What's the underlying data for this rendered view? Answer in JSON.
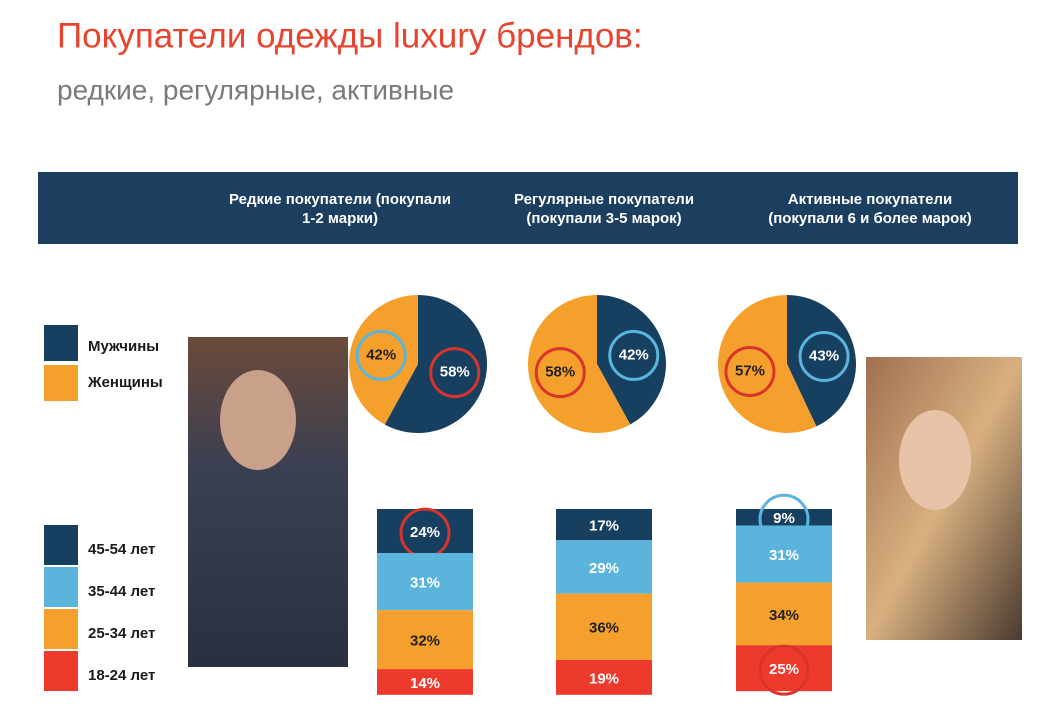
{
  "title": "Покупатели одежды luxury брендов:",
  "subtitle": "редкие, регулярные, активные",
  "columns": [
    [
      "Редкие покупатели (покупали",
      "1-2 марки)"
    ],
    [
      "Регулярные покупатели",
      "(покупали 3-5 марок)"
    ],
    [
      "Активные покупатели",
      "(покупали 6 и более марок)"
    ]
  ],
  "chart_data": [
    {
      "type": "pie",
      "categories": [
        "Мужчины",
        "Женщины"
      ],
      "values": [
        58,
        42
      ],
      "value_labels": [
        "58%",
        "42%"
      ],
      "colors": [
        "#173f5f",
        "#f5a02d"
      ],
      "rings": [
        "#d9342b",
        "#5ab4dc"
      ]
    },
    {
      "type": "pie",
      "categories": [
        "Мужчины",
        "Женщины"
      ],
      "values": [
        42,
        58
      ],
      "value_labels": [
        "42%",
        "58%"
      ],
      "colors": [
        "#173f5f",
        "#f5a02d"
      ],
      "rings": [
        "#5ab4dc",
        "#d9342b"
      ]
    },
    {
      "type": "pie",
      "categories": [
        "Мужчины",
        "Женщины"
      ],
      "values": [
        43,
        57
      ],
      "value_labels": [
        "43%",
        "57%"
      ],
      "colors": [
        "#173f5f",
        "#f5a02d"
      ],
      "rings": [
        "#5ab4dc",
        "#d9342b"
      ]
    },
    {
      "type": "stacked-bar",
      "series": [
        {
          "name": "45-54 лет",
          "color": "#173f5f",
          "values": [
            24
          ],
          "value_labels": [
            "24%"
          ],
          "rings": [
            "#d9342b"
          ]
        },
        {
          "name": "35-44 лет",
          "color": "#5ab4dc",
          "values": [
            31
          ],
          "value_labels": [
            "31%"
          ]
        },
        {
          "name": "25-34 лет",
          "color": "#f5a02d",
          "values": [
            32
          ],
          "value_labels": [
            "32%"
          ]
        },
        {
          "name": "18-24 лет",
          "color": "#ee3a2c",
          "values": [
            14
          ],
          "value_labels": [
            "14%"
          ]
        }
      ]
    },
    {
      "type": "stacked-bar",
      "series": [
        {
          "name": "45-54 лет",
          "color": "#173f5f",
          "values": [
            17
          ],
          "value_labels": [
            "17%"
          ]
        },
        {
          "name": "35-44 лет",
          "color": "#5ab4dc",
          "values": [
            29
          ],
          "value_labels": [
            "29%"
          ]
        },
        {
          "name": "25-34 лет",
          "color": "#f5a02d",
          "values": [
            36
          ],
          "value_labels": [
            "36%"
          ]
        },
        {
          "name": "18-24 лет",
          "color": "#ee3a2c",
          "values": [
            19
          ],
          "value_labels": [
            "19%"
          ]
        }
      ]
    },
    {
      "type": "stacked-bar",
      "series": [
        {
          "name": "45-54 лет",
          "color": "#173f5f",
          "values": [
            9
          ],
          "value_labels": [
            "9%"
          ],
          "rings": [
            "#5ab4dc"
          ]
        },
        {
          "name": "35-44 лет",
          "color": "#5ab4dc",
          "values": [
            31
          ],
          "value_labels": [
            "31%"
          ]
        },
        {
          "name": "25-34 лет",
          "color": "#f5a02d",
          "values": [
            34
          ],
          "value_labels": [
            "34%"
          ]
        },
        {
          "name": "18-24 лет",
          "color": "#ee3a2c",
          "values": [
            25
          ],
          "value_labels": [
            "25%"
          ],
          "rings": [
            "#d9342b"
          ]
        }
      ]
    }
  ]
}
